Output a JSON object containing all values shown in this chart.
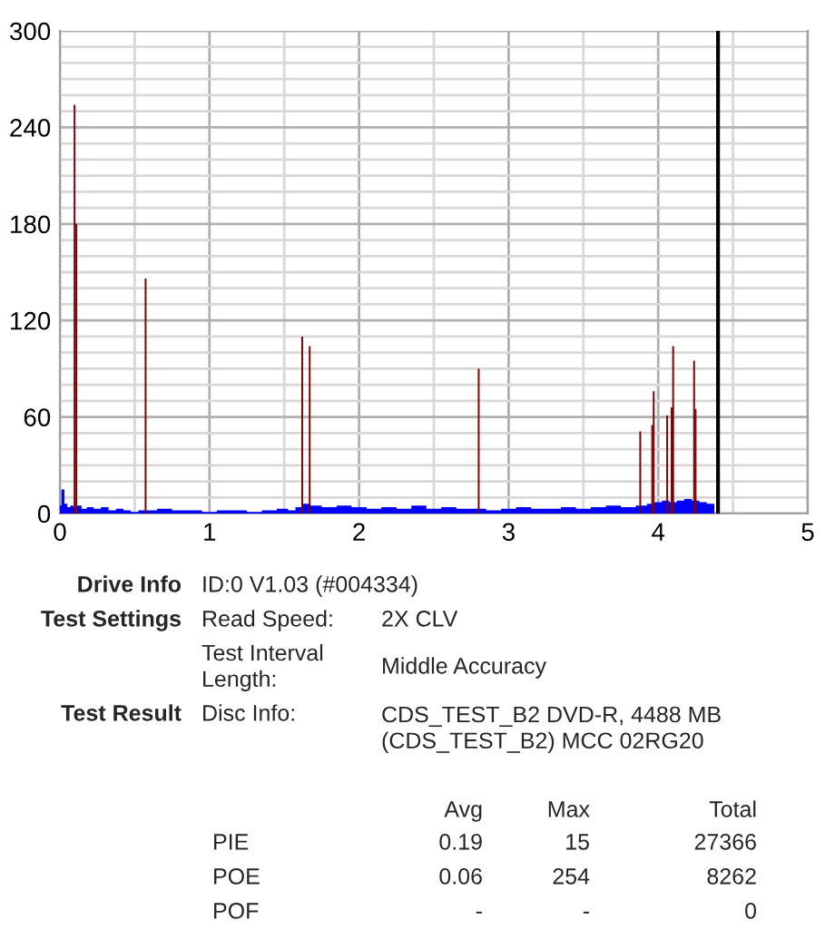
{
  "chart_data": {
    "type": "area",
    "xlim": [
      0,
      5
    ],
    "xticks": [
      0,
      1,
      2,
      3,
      4,
      5
    ],
    "ylim": [
      0,
      300
    ],
    "yticks": [
      0,
      60,
      120,
      180,
      240,
      300
    ],
    "grid": true,
    "legend": false,
    "series": [
      {
        "color": "#0000ff",
        "x": [
          0,
          0.02,
          0.04,
          0.06,
          0.08,
          0.1,
          0.13,
          0.16,
          0.2,
          0.25,
          0.3,
          0.35,
          0.4,
          0.45,
          0.5,
          0.55,
          0.6,
          0.7,
          0.8,
          0.9,
          1.0,
          1.1,
          1.2,
          1.3,
          1.4,
          1.5,
          1.55,
          1.6,
          1.65,
          1.7,
          1.8,
          1.9,
          2.0,
          2.1,
          2.2,
          2.3,
          2.4,
          2.5,
          2.6,
          2.7,
          2.8,
          2.9,
          3.0,
          3.1,
          3.2,
          3.3,
          3.4,
          3.5,
          3.6,
          3.7,
          3.8,
          3.9,
          3.95,
          4.0,
          4.05,
          4.1,
          4.15,
          4.2,
          4.25,
          4.3,
          4.35,
          4.4
        ],
        "values": [
          5,
          15,
          6,
          4,
          5,
          4,
          5,
          3,
          4,
          3,
          4,
          2,
          3,
          2,
          1,
          2,
          2,
          3,
          2,
          2,
          1,
          2,
          2,
          1,
          2,
          3,
          2,
          4,
          6,
          5,
          4,
          5,
          4,
          3,
          4,
          3,
          5,
          3,
          4,
          3,
          3,
          2,
          3,
          4,
          3,
          3,
          4,
          3,
          4,
          5,
          4,
          5,
          6,
          7,
          8,
          7,
          8,
          9,
          8,
          7,
          6,
          0
        ]
      },
      {
        "type": "bar",
        "color": "#800000",
        "x": [
          0.098,
          0.11,
          0.573,
          1.62,
          1.67,
          2.8,
          3.88,
          3.96,
          3.97,
          4.06,
          4.09,
          4.1,
          4.24,
          4.25
        ],
        "values": [
          254,
          180,
          146,
          110,
          104,
          90,
          51,
          55,
          76,
          61,
          66,
          104,
          95,
          65
        ]
      }
    ],
    "ref_lines": [
      {
        "axis": "x",
        "value": 4.4,
        "color": "#000000"
      }
    ],
    "annotations": [
      "Drive Info",
      "ID:0 V1.03 (#004334)",
      "Test Settings",
      "Read Speed:",
      "2X CLV",
      "Test Interval\nLength:",
      "Middle Accuracy",
      "Test Result",
      "Disc Info:",
      "CDS_TEST_B2 DVD-R, 4488 MB\n(CDS_TEST_B2) MCC 02RG20",
      "Avg",
      "Max",
      "Total",
      "PIE",
      "0.19",
      "15",
      "27366",
      "POE",
      "0.06",
      "254",
      "8262",
      "POF",
      "-",
      "-",
      "0"
    ]
  }
}
